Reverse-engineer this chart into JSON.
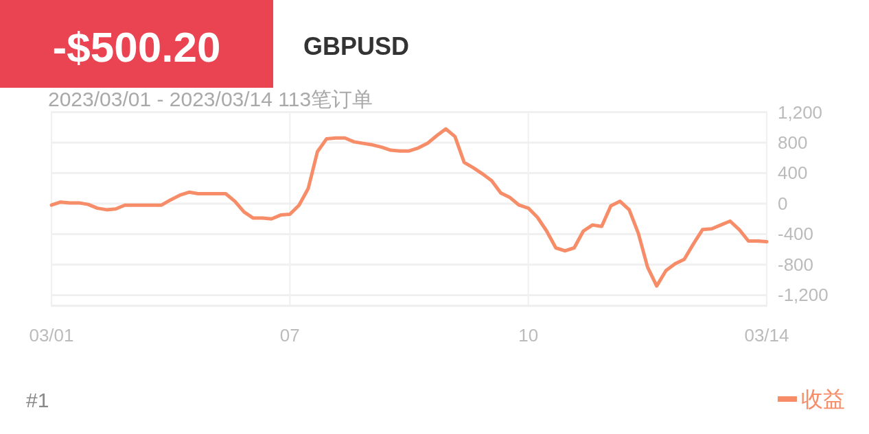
{
  "chart_data": {
    "type": "line",
    "title": "-$500.20",
    "subtitle": "GBPUSD",
    "annotations": [
      "2023/03/01 - 2023/03/14 113笔订单",
      "#1"
    ],
    "categories": [
      "03/01",
      null,
      null,
      null,
      null,
      null,
      null,
      null,
      null,
      null,
      null,
      null,
      null,
      null,
      null,
      null,
      null,
      null,
      null,
      null,
      null,
      null,
      null,
      null,
      null,
      null,
      "07",
      null,
      null,
      null,
      null,
      null,
      null,
      null,
      null,
      null,
      null,
      null,
      null,
      null,
      null,
      null,
      null,
      null,
      null,
      null,
      null,
      null,
      null,
      null,
      null,
      null,
      "10",
      null,
      null,
      null,
      null,
      null,
      null,
      null,
      null,
      null,
      null,
      null,
      null,
      null,
      null,
      null,
      null,
      null,
      null,
      null,
      null,
      null,
      null,
      null,
      null,
      null,
      "03/14"
    ],
    "series": [
      {
        "name": "收益",
        "color": "#f68d68",
        "values": [
          -20,
          20,
          10,
          10,
          -10,
          -60,
          -80,
          -70,
          -20,
          -20,
          -20,
          -20,
          -20,
          50,
          110,
          150,
          130,
          130,
          130,
          130,
          30,
          -110,
          -190,
          -190,
          -200,
          -150,
          -140,
          -20,
          200,
          680,
          850,
          860,
          860,
          810,
          790,
          770,
          740,
          700,
          690,
          690,
          730,
          790,
          890,
          980,
          880,
          540,
          470,
          390,
          300,
          140,
          80,
          -20,
          -60,
          -180,
          -360,
          -580,
          -620,
          -580,
          -360,
          -280,
          -300,
          -30,
          30,
          -80,
          -390,
          -830,
          -1080,
          -880,
          -790,
          -730,
          -530,
          -340,
          -330,
          -280,
          -230,
          -340,
          -490,
          -490,
          -500
        ]
      }
    ],
    "ylim": [
      -1340,
      1200
    ],
    "yticks": [
      {
        "value": 1200,
        "label": "1,200"
      },
      800,
      400,
      0,
      -400,
      -800,
      {
        "value": -1200,
        "label": "-1,200"
      }
    ],
    "grid": true,
    "legend": "bottom right"
  }
}
